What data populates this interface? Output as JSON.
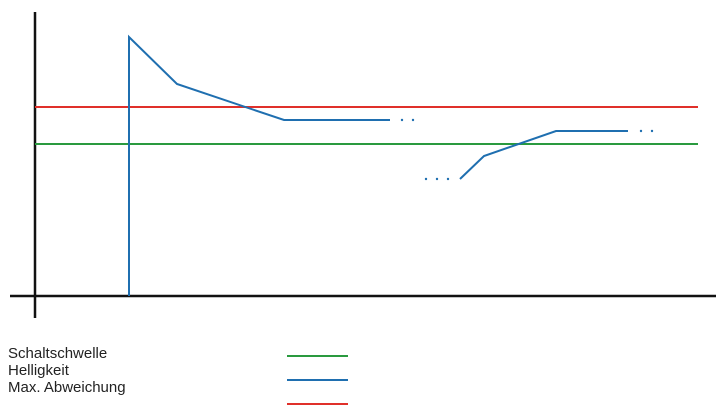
{
  "legend": [
    {
      "label": "Schaltschwelle",
      "color": "#2a9a3f"
    },
    {
      "label": "Helligkeit",
      "color": "#1f6fb0"
    },
    {
      "label": "Max. Abweichung",
      "color": "#e0302a"
    }
  ]
}
